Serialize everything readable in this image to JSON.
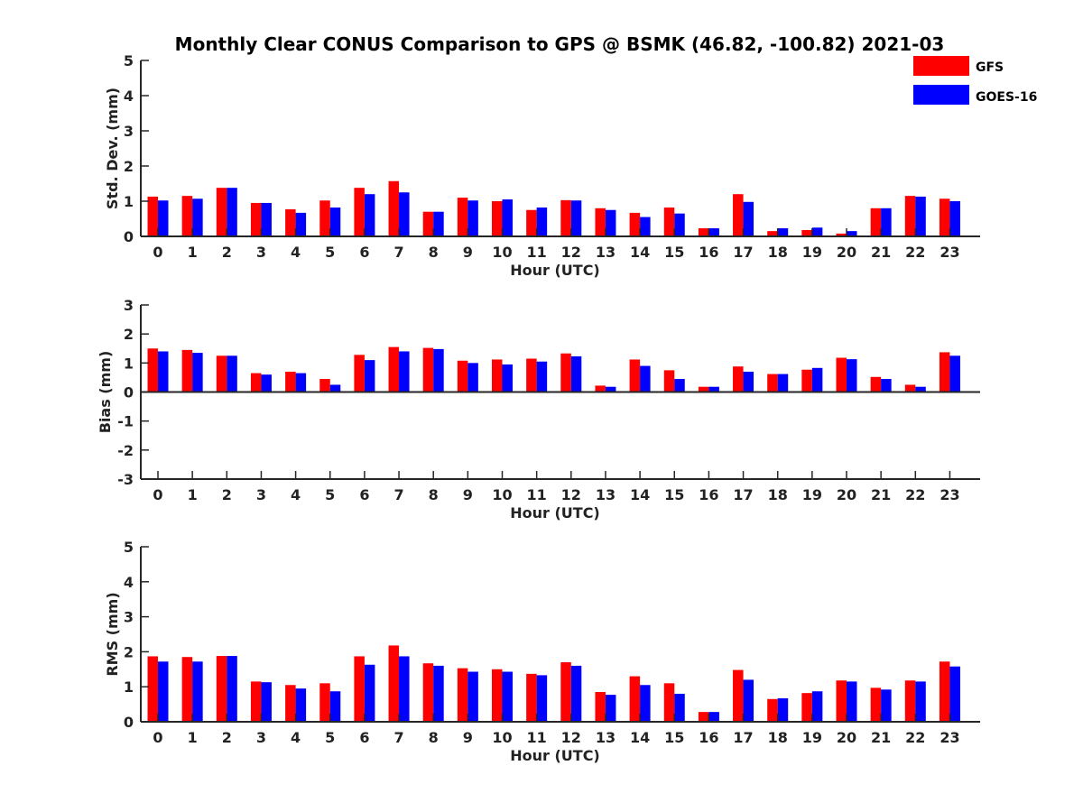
{
  "title": "Monthly Clear CONUS Comparison to GPS @ BSMK (46.82, -100.82) 2021-03",
  "colors": {
    "GFS": "#ff0000",
    "GOES-16": "#0000ff"
  },
  "legend": {
    "placement": "top-right",
    "entries": [
      "GFS",
      "GOES-16"
    ]
  },
  "chart_data": [
    {
      "type": "bar",
      "title": "Monthly Clear CONUS Comparison to GPS @ BSMK (46.82, -100.82) 2021-03",
      "xlabel": "Hour (UTC)",
      "ylabel": "Std. Dev. (mm)",
      "ylim": [
        0,
        5
      ],
      "yticks": [
        0,
        1,
        2,
        3,
        4,
        5
      ],
      "categories": [
        "0",
        "1",
        "2",
        "3",
        "4",
        "5",
        "6",
        "7",
        "8",
        "9",
        "10",
        "11",
        "12",
        "13",
        "14",
        "15",
        "16",
        "17",
        "18",
        "19",
        "20",
        "21",
        "22",
        "23"
      ],
      "series": [
        {
          "name": "GFS",
          "values": [
            1.13,
            1.15,
            1.38,
            0.95,
            0.77,
            1.02,
            1.38,
            1.57,
            0.7,
            1.1,
            1.0,
            0.75,
            1.03,
            0.8,
            0.67,
            0.82,
            0.23,
            1.2,
            0.15,
            0.18,
            0.08,
            0.8,
            1.15,
            1.07
          ]
        },
        {
          "name": "GOES-16",
          "values": [
            1.02,
            1.07,
            1.38,
            0.95,
            0.67,
            0.82,
            1.2,
            1.25,
            0.7,
            1.02,
            1.05,
            0.82,
            1.02,
            0.75,
            0.55,
            0.65,
            0.23,
            0.98,
            0.23,
            0.25,
            0.15,
            0.8,
            1.13,
            1.0
          ]
        }
      ]
    },
    {
      "type": "bar",
      "xlabel": "Hour (UTC)",
      "ylabel": "Bias (mm)",
      "ylim": [
        -3,
        3
      ],
      "yticks": [
        -3,
        -2,
        -1,
        0,
        1,
        2,
        3
      ],
      "categories": [
        "0",
        "1",
        "2",
        "3",
        "4",
        "5",
        "6",
        "7",
        "8",
        "9",
        "10",
        "11",
        "12",
        "13",
        "14",
        "15",
        "16",
        "17",
        "18",
        "19",
        "20",
        "21",
        "22",
        "23"
      ],
      "series": [
        {
          "name": "GFS",
          "values": [
            1.5,
            1.45,
            1.25,
            0.65,
            0.7,
            0.45,
            1.28,
            1.55,
            1.52,
            1.08,
            1.12,
            1.15,
            1.33,
            0.22,
            1.12,
            0.75,
            0.18,
            0.88,
            0.62,
            0.77,
            1.18,
            0.52,
            0.25,
            1.37
          ]
        },
        {
          "name": "GOES-16",
          "values": [
            1.4,
            1.35,
            1.25,
            0.6,
            0.65,
            0.25,
            1.1,
            1.4,
            1.48,
            1.0,
            0.95,
            1.05,
            1.23,
            0.18,
            0.9,
            0.45,
            0.18,
            0.7,
            0.62,
            0.83,
            1.13,
            0.45,
            0.18,
            1.25
          ]
        }
      ]
    },
    {
      "type": "bar",
      "xlabel": "Hour (UTC)",
      "ylabel": "RMS (mm)",
      "ylim": [
        0,
        5
      ],
      "yticks": [
        0,
        1,
        2,
        3,
        4,
        5
      ],
      "categories": [
        "0",
        "1",
        "2",
        "3",
        "4",
        "5",
        "6",
        "7",
        "8",
        "9",
        "10",
        "11",
        "12",
        "13",
        "14",
        "15",
        "16",
        "17",
        "18",
        "19",
        "20",
        "21",
        "22",
        "23"
      ],
      "series": [
        {
          "name": "GFS",
          "values": [
            1.87,
            1.85,
            1.88,
            1.15,
            1.05,
            1.1,
            1.87,
            2.18,
            1.67,
            1.53,
            1.5,
            1.37,
            1.7,
            0.85,
            1.3,
            1.1,
            0.28,
            1.48,
            0.65,
            0.82,
            1.18,
            0.97,
            1.18,
            1.72
          ]
        },
        {
          "name": "GOES-16",
          "values": [
            1.72,
            1.72,
            1.88,
            1.13,
            0.95,
            0.87,
            1.63,
            1.87,
            1.6,
            1.43,
            1.43,
            1.33,
            1.6,
            0.77,
            1.05,
            0.8,
            0.28,
            1.2,
            0.67,
            0.87,
            1.15,
            0.92,
            1.15,
            1.58
          ]
        }
      ]
    }
  ]
}
